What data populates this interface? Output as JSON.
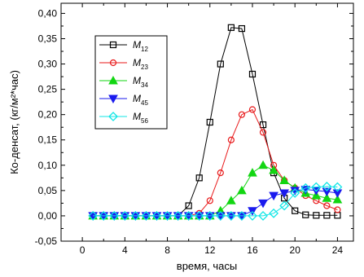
{
  "chart_data": {
    "type": "line",
    "xlabel": "время, часы",
    "ylabel": "Ко-денсат, (кг/м²*час)",
    "xlim": [
      -2,
      25.5
    ],
    "ylim": [
      -0.05,
      0.42
    ],
    "xticks": [
      "0",
      "4",
      "8",
      "12",
      "16",
      "20",
      "24"
    ],
    "yticks": [
      "-0,05",
      "0,00",
      "0,05",
      "0,10",
      "0,15",
      "0,20",
      "0,25",
      "0,30",
      "0,35",
      "0,40"
    ],
    "legend_position": "top-left",
    "series": [
      {
        "name": "M",
        "sub": "12",
        "color": "#000000",
        "marker": "square",
        "x": [
          1,
          2,
          3,
          4,
          5,
          6,
          7,
          8,
          9,
          10,
          11,
          12,
          13,
          14,
          15,
          16,
          17,
          18,
          19,
          20,
          21,
          22,
          23,
          24
        ],
        "y": [
          0,
          0,
          0,
          0,
          0,
          0,
          0,
          0,
          0,
          0.02,
          0.075,
          0.185,
          0.3,
          0.372,
          0.37,
          0.28,
          0.18,
          0.085,
          0.035,
          0.01,
          0.002,
          0.001,
          0.001,
          0.001
        ]
      },
      {
        "name": "M",
        "sub": "23",
        "color": "#e8191a",
        "marker": "circle",
        "x": [
          1,
          2,
          3,
          4,
          5,
          6,
          7,
          8,
          9,
          10,
          11,
          12,
          13,
          14,
          15,
          16,
          17,
          18,
          19,
          20,
          21,
          22,
          23,
          24
        ],
        "y": [
          0,
          0,
          0,
          0,
          0,
          0,
          0,
          0,
          0,
          0,
          0.005,
          0.03,
          0.085,
          0.15,
          0.2,
          0.21,
          0.165,
          0.1,
          0.07,
          0.055,
          0.04,
          0.03,
          0.02,
          0.012
        ]
      },
      {
        "name": "M",
        "sub": "34",
        "color": "#12d612",
        "marker": "triangle-up",
        "x": [
          1,
          2,
          3,
          4,
          5,
          6,
          7,
          8,
          9,
          10,
          11,
          12,
          13,
          14,
          15,
          16,
          17,
          18,
          19,
          20,
          21,
          22,
          23,
          24
        ],
        "y": [
          0,
          0,
          0,
          0,
          0,
          0,
          0,
          0,
          0,
          0,
          0,
          0,
          0.01,
          0.03,
          0.05,
          0.085,
          0.1,
          0.09,
          0.07,
          0.055,
          0.045,
          0.04,
          0.035,
          0.032
        ]
      },
      {
        "name": "M",
        "sub": "45",
        "color": "#1a1aee",
        "marker": "triangle-down",
        "x": [
          1,
          2,
          3,
          4,
          5,
          6,
          7,
          8,
          9,
          10,
          11,
          12,
          13,
          14,
          15,
          16,
          17,
          18,
          19,
          20,
          21,
          22,
          23,
          24
        ],
        "y": [
          0,
          0,
          0,
          0,
          0,
          0,
          0,
          0,
          0,
          0,
          0,
          0,
          0,
          0,
          0,
          0.01,
          0.025,
          0.04,
          0.045,
          0.05,
          0.052,
          0.05,
          0.048,
          0.045
        ]
      },
      {
        "name": "M",
        "sub": "56",
        "color": "#10e6e6",
        "marker": "diamond",
        "x": [
          1,
          2,
          3,
          4,
          5,
          6,
          7,
          8,
          9,
          10,
          11,
          12,
          13,
          14,
          15,
          16,
          17,
          18,
          19,
          20,
          21,
          22,
          23,
          24
        ],
        "y": [
          0,
          0,
          0,
          0,
          0,
          0,
          0,
          0,
          0,
          0,
          0,
          0,
          0,
          0,
          0,
          0,
          0,
          0.005,
          0.02,
          0.045,
          0.055,
          0.057,
          0.058,
          0.057
        ]
      }
    ]
  }
}
